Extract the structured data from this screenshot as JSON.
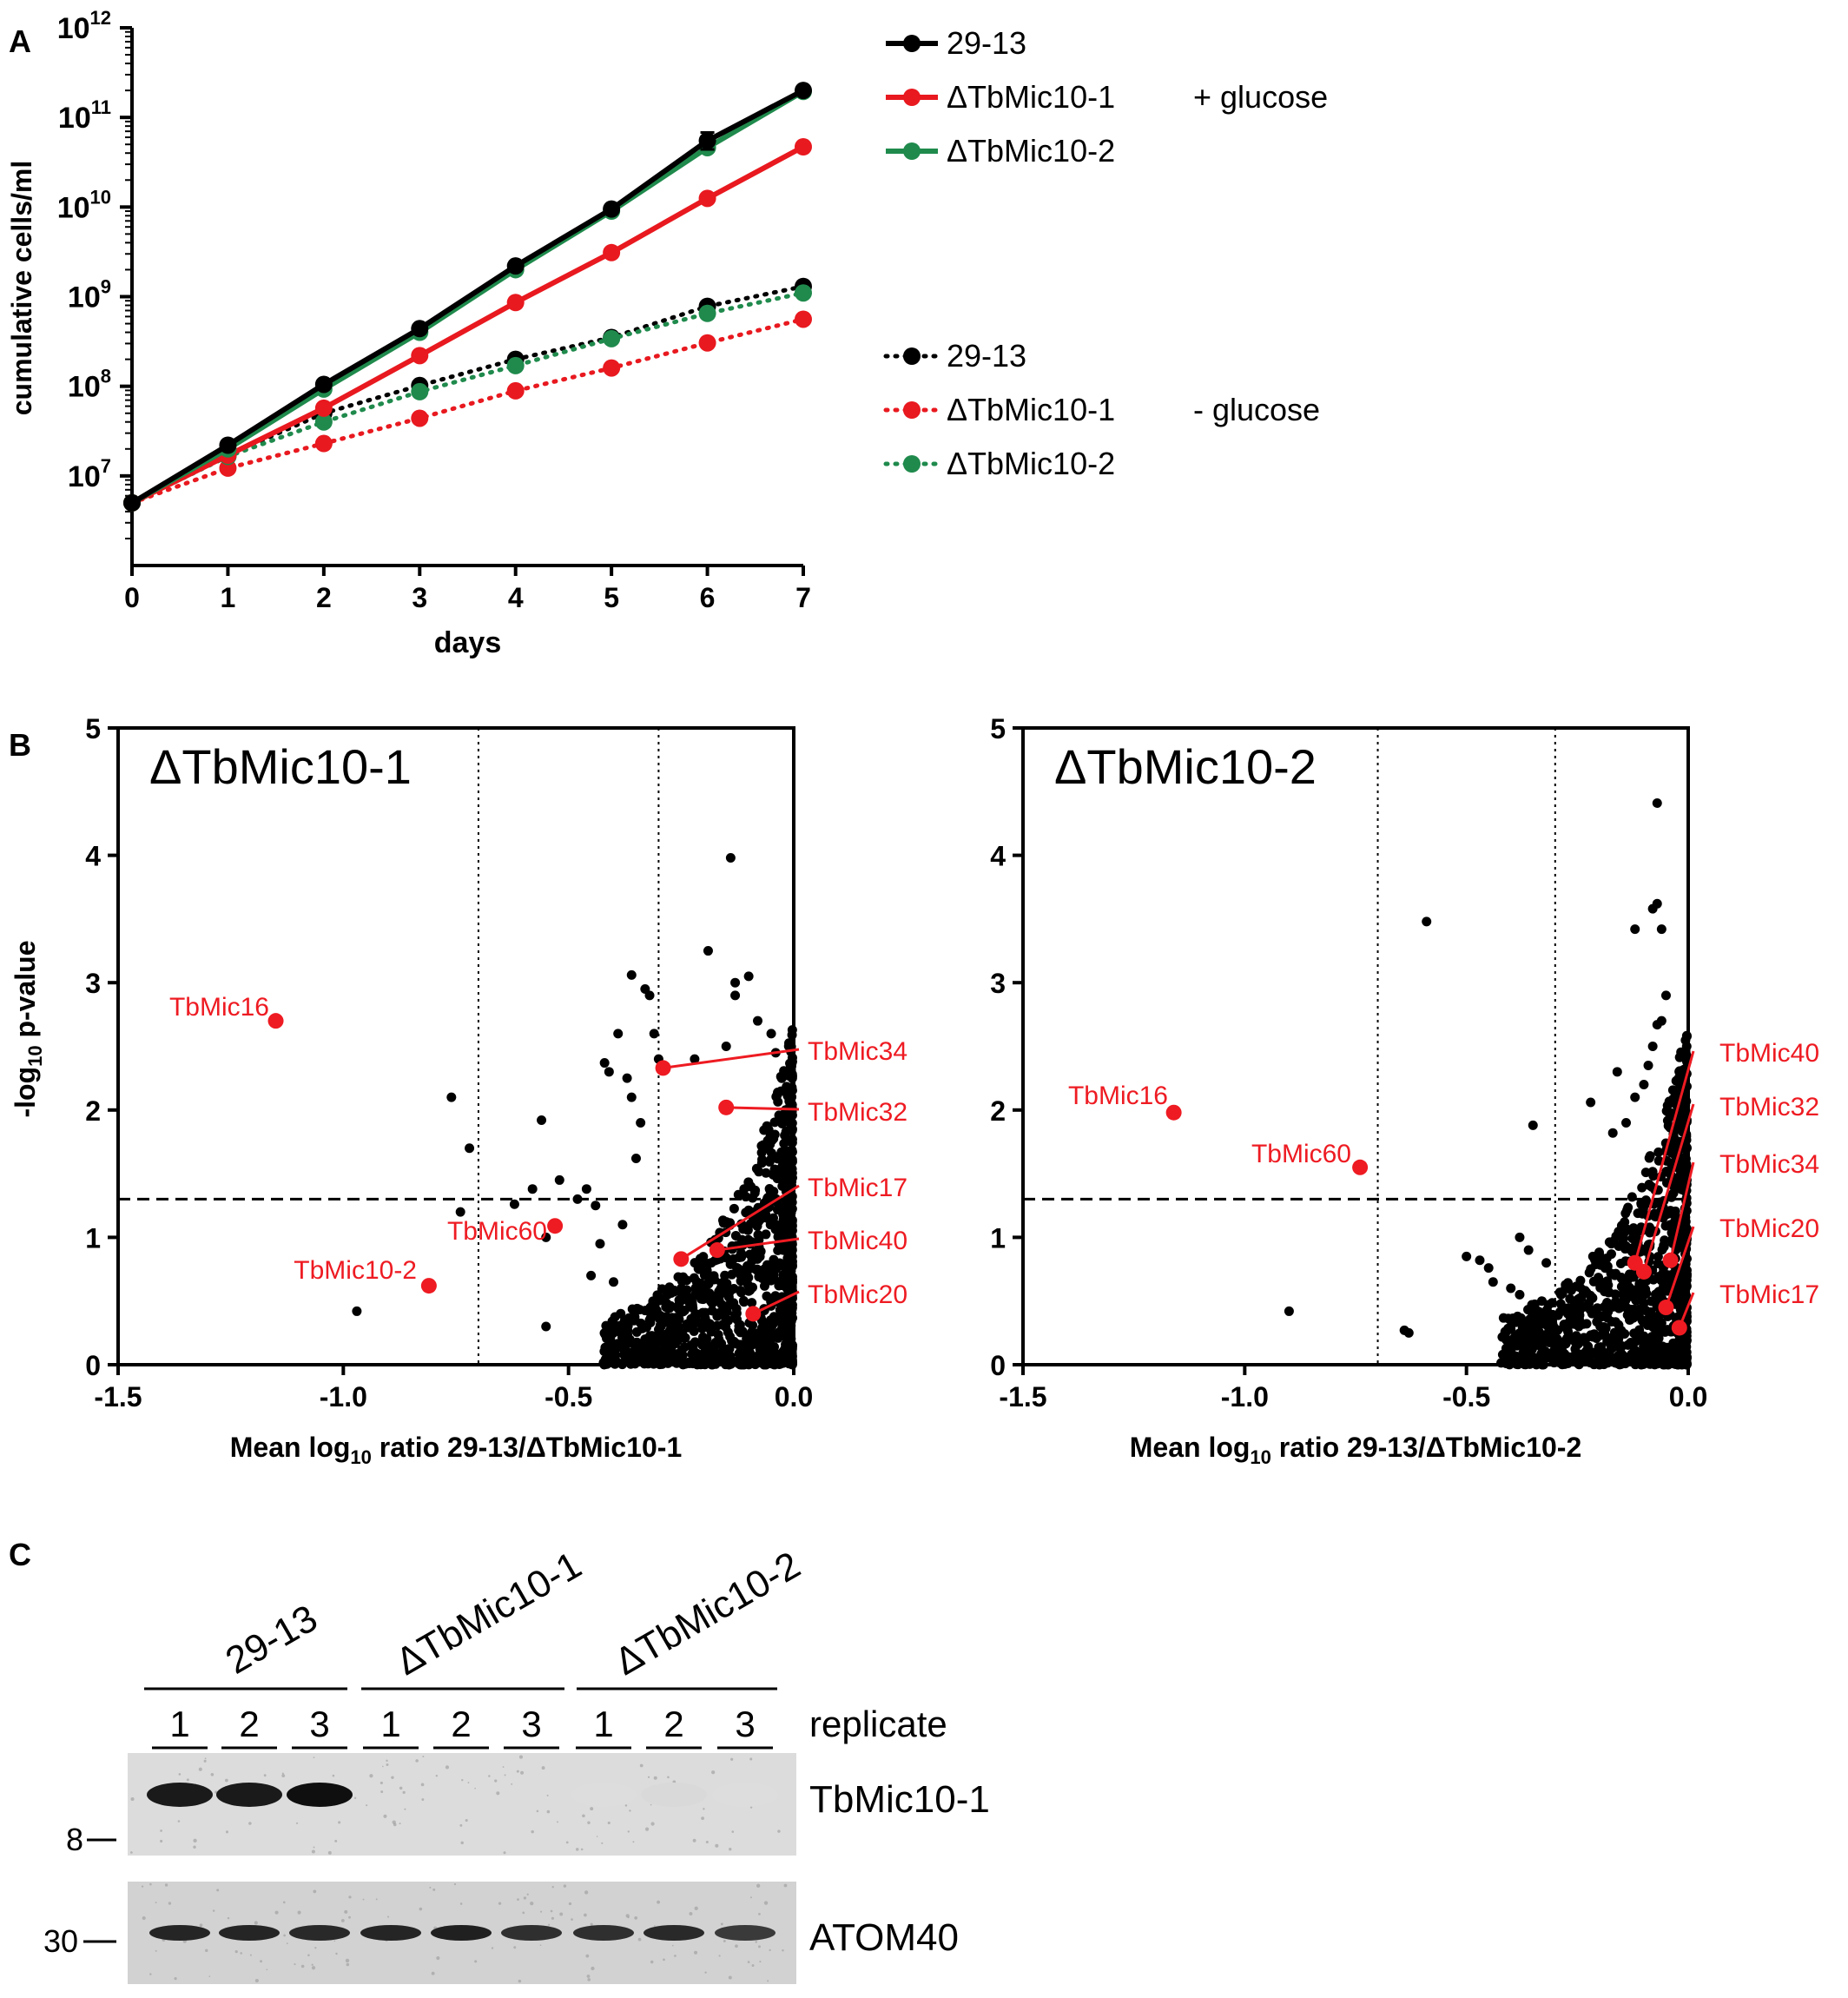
{
  "colors": {
    "black": "#000000",
    "red": "#e8191f",
    "green": "#1f8a4c",
    "highlight": "#ee1b22",
    "blot_bg": "#d4d4d4"
  },
  "panels": {
    "a": "A",
    "b": "B",
    "c": "C"
  },
  "chart_data": [
    {
      "id": "growth",
      "type": "line",
      "xlabel": "days",
      "ylabel": "cumulative cells/ml",
      "x_ticks": [
        "0",
        "1",
        "2",
        "3",
        "4",
        "5",
        "6",
        "7"
      ],
      "y_scale": "log",
      "ylim": [
        1000000.0,
        1000000000000.0
      ],
      "y_ticks": [
        {
          "base": "10",
          "exp": "7",
          "value": 10000000.0
        },
        {
          "base": "10",
          "exp": "8",
          "value": 100000000.0
        },
        {
          "base": "10",
          "exp": "9",
          "value": 1000000000.0
        },
        {
          "base": "10",
          "exp": "10",
          "value": 10000000000.0
        },
        {
          "base": "10",
          "exp": "11",
          "value": 100000000000.0
        },
        {
          "base": "10",
          "exp": "12",
          "value": 1000000000000.0
        }
      ],
      "x": [
        0,
        1,
        2,
        3,
        4,
        5,
        6,
        7
      ],
      "legend_groups": [
        {
          "condition": "+ glucose",
          "style": "solid"
        },
        {
          "condition": "- glucose",
          "style": "dotted"
        }
      ],
      "series": [
        {
          "name": "29-13",
          "color": "black",
          "style": "solid",
          "values": [
            5000000.0,
            22000000.0,
            105000000.0,
            440000000.0,
            2200000000.0,
            9500000000.0,
            55000000000.0,
            200000000000.0
          ]
        },
        {
          "name": "ΔTbMic10-1",
          "color": "red",
          "style": "solid",
          "values": [
            5000000.0,
            17000000.0,
            57000000.0,
            220000000.0,
            860000000.0,
            3100000000.0,
            12500000000.0,
            47000000000.0
          ]
        },
        {
          "name": "ΔTbMic10-2",
          "color": "green",
          "style": "solid",
          "values": [
            5000000.0,
            20000000.0,
            93000000.0,
            400000000.0,
            2000000000.0,
            9000000000.0,
            46000000000.0,
            195000000000.0
          ]
        },
        {
          "name": "29-13",
          "color": "black",
          "style": "dotted",
          "values": [
            5000000.0,
            17000000.0,
            50000000.0,
            102000000.0,
            200000000.0,
            350000000.0,
            780000000.0,
            1300000000.0
          ]
        },
        {
          "name": "ΔTbMic10-1",
          "color": "red",
          "style": "dotted",
          "values": [
            5000000.0,
            12200000.0,
            23000000.0,
            44000000.0,
            89000000.0,
            160000000.0,
            305000000.0,
            560000000.0
          ]
        },
        {
          "name": "ΔTbMic10-2",
          "color": "green",
          "style": "dotted",
          "values": [
            5000000.0,
            16500000.0,
            40000000.0,
            87000000.0,
            170000000.0,
            340000000.0,
            650000000.0,
            1100000000.0
          ]
        }
      ]
    },
    {
      "id": "volcano1",
      "type": "scatter",
      "title": "ΔTbMic10-1",
      "xlabel_main": "Mean log",
      "xlabel_sub": "10",
      "xlabel_rest": " ratio 29-13/ΔTbMic10-1",
      "ylabel_main": "-log",
      "ylabel_sub": "10",
      "ylabel_rest": " p-value",
      "xlim": [
        -1.5,
        0.0
      ],
      "ylim": [
        0,
        5
      ],
      "x_ticks": [
        "-1.5",
        "-1.0",
        "-0.5",
        "0.0"
      ],
      "y_ticks": [
        "0",
        "1",
        "2",
        "3",
        "4",
        "5"
      ],
      "vlines": [
        -0.7,
        -0.3
      ],
      "hline": 1.3,
      "background_seed": 17,
      "background_points": [
        [
          -0.97,
          0.42
        ],
        [
          -0.76,
          2.1
        ],
        [
          -0.72,
          1.7
        ],
        [
          -0.74,
          1.2
        ],
        [
          -0.62,
          1.26
        ],
        [
          -0.58,
          1.38
        ],
        [
          -0.55,
          1.0
        ],
        [
          -0.56,
          1.92
        ],
        [
          -0.55,
          0.3
        ],
        [
          -0.52,
          1.45
        ],
        [
          -0.48,
          1.3
        ],
        [
          -0.46,
          1.38
        ],
        [
          -0.44,
          1.25
        ],
        [
          -0.43,
          0.95
        ],
        [
          -0.41,
          2.3
        ],
        [
          -0.42,
          2.37
        ],
        [
          -0.36,
          3.06
        ],
        [
          -0.39,
          2.6
        ],
        [
          -0.37,
          2.25
        ],
        [
          -0.38,
          1.1
        ],
        [
          -0.35,
          1.62
        ],
        [
          -0.4,
          0.65
        ],
        [
          -0.45,
          0.7
        ],
        [
          -0.33,
          2.95
        ],
        [
          -0.3,
          2.4
        ],
        [
          -0.31,
          2.6
        ],
        [
          -0.32,
          2.9
        ],
        [
          -0.19,
          3.25
        ],
        [
          -0.22,
          2.4
        ],
        [
          -0.1,
          3.05
        ],
        [
          -0.13,
          3.0
        ],
        [
          -0.13,
          2.9
        ],
        [
          -0.15,
          2.5
        ],
        [
          -0.14,
          3.98
        ],
        [
          -0.08,
          2.7
        ],
        [
          -0.05,
          2.6
        ],
        [
          -0.04,
          2.45
        ],
        [
          -0.36,
          2.1
        ],
        [
          -0.34,
          1.9
        ],
        [
          -0.33,
          0.2
        ],
        [
          -0.32,
          0.35
        ],
        [
          -0.28,
          0.55
        ]
      ],
      "highlighted": [
        {
          "label": "TbMic16",
          "x": -1.15,
          "y": 2.7
        },
        {
          "label": "TbMic10-2",
          "x": -0.81,
          "y": 0.62
        },
        {
          "label": "TbMic60",
          "x": -0.53,
          "y": 1.09
        },
        {
          "label": "TbMic34",
          "x": -0.29,
          "y": 2.33
        },
        {
          "label": "TbMic32",
          "x": -0.15,
          "y": 2.02
        },
        {
          "label": "TbMic17",
          "x": -0.25,
          "y": 0.83
        },
        {
          "label": "TbMic40",
          "x": -0.17,
          "y": 0.9
        },
        {
          "label": "TbMic20",
          "x": -0.09,
          "y": 0.4
        }
      ]
    },
    {
      "id": "volcano2",
      "type": "scatter",
      "title": "ΔTbMic10-2",
      "xlabel_main": "Mean log",
      "xlabel_sub": "10",
      "xlabel_rest": " ratio 29-13/ΔTbMic10-2",
      "xlim": [
        -1.5,
        0.0
      ],
      "ylim": [
        0,
        5
      ],
      "x_ticks": [
        "-1.5",
        "-1.0",
        "-0.5",
        "0.0"
      ],
      "y_ticks": [
        "0",
        "1",
        "2",
        "3",
        "4",
        "5"
      ],
      "vlines": [
        -0.7,
        -0.3
      ],
      "hline": 1.3,
      "background_seed": 29,
      "background_points": [
        [
          -0.9,
          0.42
        ],
        [
          -0.64,
          0.27
        ],
        [
          -0.63,
          0.25
        ],
        [
          -0.59,
          3.48
        ],
        [
          -0.5,
          0.85
        ],
        [
          -0.47,
          0.82
        ],
        [
          -0.45,
          0.76
        ],
        [
          -0.44,
          0.65
        ],
        [
          -0.4,
          0.6
        ],
        [
          -0.38,
          0.55
        ],
        [
          -0.35,
          1.88
        ],
        [
          -0.3,
          0.15
        ],
        [
          -0.22,
          2.06
        ],
        [
          -0.17,
          1.82
        ],
        [
          -0.16,
          2.3
        ],
        [
          -0.12,
          3.42
        ],
        [
          -0.08,
          3.58
        ],
        [
          -0.07,
          3.62
        ],
        [
          -0.06,
          3.42
        ],
        [
          -0.07,
          4.41
        ],
        [
          -0.07,
          2.67
        ],
        [
          -0.08,
          2.5
        ],
        [
          -0.09,
          2.35
        ],
        [
          -0.05,
          2.9
        ],
        [
          -0.06,
          2.7
        ],
        [
          -0.1,
          2.2
        ],
        [
          -0.12,
          2.1
        ],
        [
          -0.14,
          1.9
        ],
        [
          -0.33,
          0.5
        ],
        [
          -0.38,
          1.0
        ],
        [
          -0.36,
          0.9
        ],
        [
          -0.32,
          0.8
        ]
      ],
      "highlighted": [
        {
          "label": "TbMic16",
          "x": -1.16,
          "y": 1.98
        },
        {
          "label": "TbMic60",
          "x": -0.74,
          "y": 1.55
        },
        {
          "label": "TbMic40",
          "x": -0.12,
          "y": 0.8
        },
        {
          "label": "TbMic32",
          "x": -0.1,
          "y": 0.73
        },
        {
          "label": "TbMic34",
          "x": -0.04,
          "y": 0.82
        },
        {
          "label": "TbMic20",
          "x": -0.05,
          "y": 0.45
        },
        {
          "label": "TbMic17",
          "x": -0.02,
          "y": 0.29
        }
      ]
    }
  ],
  "blot": {
    "groups": [
      "29-13",
      "ΔTbMic10-1",
      "ΔTbMic10-2"
    ],
    "replicates": [
      "1",
      "2",
      "3",
      "1",
      "2",
      "3",
      "1",
      "2",
      "3"
    ],
    "replicate_label": "replicate",
    "rows": [
      {
        "protein": "TbMic10-1",
        "marker": "8",
        "band_intensity": [
          0.95,
          0.95,
          1.0,
          0,
          0,
          0,
          0.04,
          0.06,
          0.04
        ]
      },
      {
        "protein": "ATOM40",
        "marker": "30",
        "band_intensity": [
          0.9,
          0.9,
          0.88,
          0.9,
          0.92,
          0.85,
          0.85,
          0.88,
          0.8
        ]
      }
    ]
  }
}
